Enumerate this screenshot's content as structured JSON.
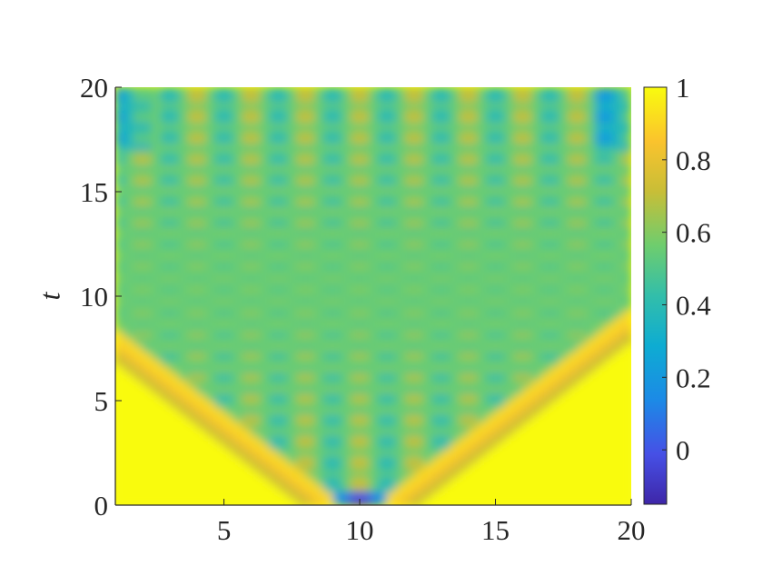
{
  "chart_data": {
    "type": "heatmap",
    "title": "",
    "xlabel": "",
    "ylabel": "t",
    "xlim": [
      1,
      20
    ],
    "ylim": [
      0,
      20
    ],
    "x_ticks": [
      5,
      10,
      15,
      20
    ],
    "y_ticks": [
      0,
      5,
      10,
      15,
      20
    ],
    "x_tick_labels": [
      "5",
      "10",
      "15",
      "20"
    ],
    "y_tick_labels": [
      "0",
      "5",
      "10",
      "15",
      "20"
    ],
    "colorbar": {
      "range": [
        -0.15,
        1
      ],
      "ticks": [
        0,
        0.2,
        0.4,
        0.6,
        0.8,
        1
      ],
      "tick_labels": [
        "0",
        "0.2",
        "0.4",
        "0.6",
        "0.8",
        "1"
      ]
    },
    "colormap": "parula",
    "colors": {
      "high": "#f9fb0e",
      "mid_high": "#e6b432",
      "mid": "#3fbc9d",
      "low": "#1890dc",
      "min": "#3e26a8"
    },
    "description_of_field": {
      "initial_site_x": 10,
      "initial_value": -0.1,
      "background_value": 1,
      "light_cone_speed": 0.5,
      "interior_mean": 0.55
    }
  }
}
